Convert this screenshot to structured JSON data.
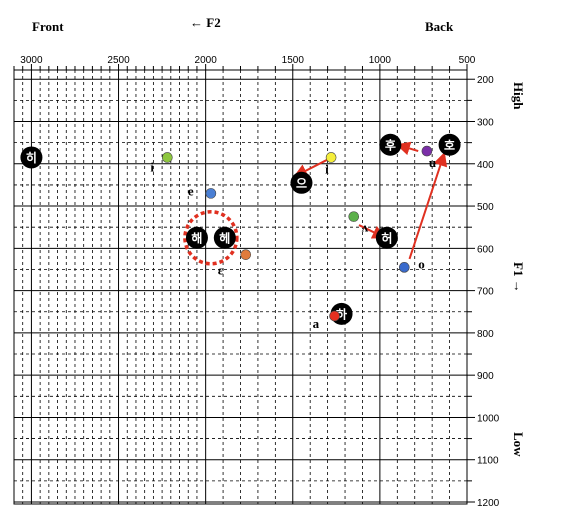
{
  "chart_data": {
    "type": "scatter",
    "title": "",
    "header": {
      "front": "Front",
      "back": "Back",
      "f2": "← F2",
      "f1": "F1 →",
      "high": "High",
      "low": "Low"
    },
    "x_axis": {
      "name": "F2",
      "reversed": true,
      "range": [
        3100,
        500
      ],
      "ticks": [
        3000,
        2500,
        2000,
        1500,
        1000,
        500
      ],
      "minor_step": 100,
      "minor_fine_left_until": 2000
    },
    "y_axis": {
      "name": "F1",
      "reversed": true,
      "range": [
        190,
        1200
      ],
      "ticks": [
        200,
        300,
        400,
        500,
        600,
        700,
        800,
        900,
        1000,
        1100,
        1200
      ],
      "minor_step": 50
    },
    "points": [
      {
        "label": "i",
        "f2": 2220,
        "f1": 385,
        "color": "#8dc63f"
      },
      {
        "label": "i",
        "f2": 1280,
        "f1": 385,
        "color": "#f5ee3b"
      },
      {
        "label": "u",
        "f2": 730,
        "f1": 370,
        "color": "#7b2fa8"
      },
      {
        "label": "e",
        "f2": 1970,
        "f1": 470,
        "color": "#4a7fd4"
      },
      {
        "label": "ʌ",
        "f2": 1150,
        "f1": 525,
        "color": "#5bb04a"
      },
      {
        "label": "ɛ",
        "f2": 1770,
        "f1": 615,
        "color": "#e07b3c"
      },
      {
        "label": "o",
        "f2": 860,
        "f1": 645,
        "color": "#3a6bcc"
      },
      {
        "label": "a",
        "f2": 1260,
        "f1": 760,
        "color": "#e53020"
      }
    ],
    "korean_vowels": [
      {
        "text": "히",
        "f2": 3000,
        "f1": 385
      },
      {
        "text": "으",
        "f2": 1450,
        "f1": 445
      },
      {
        "text": "후",
        "f2": 940,
        "f1": 355
      },
      {
        "text": "호",
        "f2": 600,
        "f1": 355
      },
      {
        "text": "허",
        "f2": 960,
        "f1": 575
      },
      {
        "text": "해",
        "f2": 2050,
        "f1": 575
      },
      {
        "text": "헤",
        "f2": 1890,
        "f1": 575
      },
      {
        "text": "하",
        "f2": 1220,
        "f1": 755
      }
    ],
    "arrows": [
      {
        "from": [
          1300,
          390
        ],
        "to": [
          1490,
          430
        ]
      },
      {
        "from": [
          780,
          370
        ],
        "to": [
          900,
          355
        ]
      },
      {
        "from": [
          1120,
          545
        ],
        "to": [
          970,
          575
        ]
      },
      {
        "from": [
          830,
          625
        ],
        "to": [
          630,
          375
        ]
      }
    ],
    "merged_region": {
      "f2": 1970,
      "f1": 575
    }
  }
}
